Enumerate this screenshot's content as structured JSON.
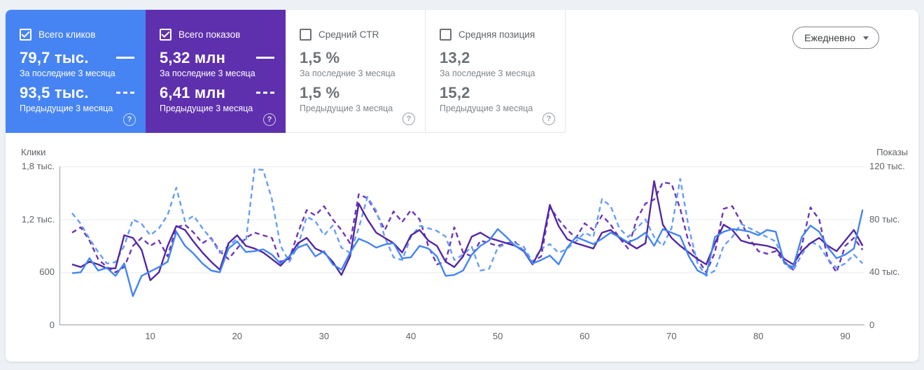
{
  "icons": {
    "help": "?"
  },
  "period_selector": {
    "label": "Ежедневно"
  },
  "cards": [
    {
      "label": "Всего кликов",
      "checked": true,
      "bg": "#4784f3",
      "current": {
        "value": "79,7 тыс.",
        "caption": "За последние 3 месяца"
      },
      "previous": {
        "value": "93,5 тыс.",
        "caption": "Предыдущие 3 месяца"
      }
    },
    {
      "label": "Всего показов",
      "checked": true,
      "bg": "#5e30ad",
      "current": {
        "value": "5,32 млн",
        "caption": "За последние 3 месяца"
      },
      "previous": {
        "value": "6,41 млн",
        "caption": "Предыдущие 3 месяца"
      }
    },
    {
      "label": "Средний CTR",
      "checked": false,
      "bg": "#ffffff",
      "current": {
        "value": "1,5 %",
        "caption": "За последние 3 месяца"
      },
      "previous": {
        "value": "1,5 %",
        "caption": "Предыдущие 3 месяца"
      }
    },
    {
      "label": "Средняя позиция",
      "checked": false,
      "bg": "#ffffff",
      "current": {
        "value": "13,2",
        "caption": "За последние 3 месяца"
      },
      "previous": {
        "value": "15,2",
        "caption": "Предыдущие 3 месяца"
      }
    }
  ],
  "chart_data": {
    "type": "line",
    "title": "",
    "xlabel": "",
    "x_label_ticks": [
      10,
      20,
      30,
      40,
      50,
      60,
      70,
      80,
      90
    ],
    "x_range": [
      1,
      92
    ],
    "grid": true,
    "left_axis": {
      "title": "Клики",
      "ticks": [
        "1,8 тыс.",
        "1,2 тыс.",
        "600",
        "0"
      ],
      "max": 1800
    },
    "right_axis": {
      "title": "Показы",
      "ticks": [
        "120 тыс.",
        "80 тыс.",
        "40 тыс.",
        "0"
      ],
      "max": 120000
    },
    "series": [
      {
        "name": "Показы — предыдущие 3 месяца",
        "axis": "right",
        "style": "dashed",
        "color": "#6d35ba",
        "values": [
          70000,
          74000,
          64000,
          50000,
          44000,
          40000,
          44000,
          60000,
          66000,
          60000,
          64000,
          52000,
          74000,
          76000,
          70000,
          62000,
          66000,
          56000,
          50000,
          58000,
          66000,
          70000,
          68000,
          66000,
          48000,
          50000,
          70000,
          87000,
          83000,
          90000,
          80000,
          72000,
          62000,
          99000,
          96000,
          85000,
          72000,
          86000,
          78000,
          87000,
          80000,
          60000,
          46000,
          48000,
          74000,
          55000,
          52000,
          64000,
          62000,
          60000,
          62000,
          63000,
          56000,
          48000,
          52000,
          89000,
          80000,
          72000,
          66000,
          77000,
          72000,
          83000,
          76000,
          66000,
          58000,
          80000,
          92000,
          95000,
          108000,
          107000,
          88000,
          62000,
          50000,
          40000,
          55000,
          88000,
          90000,
          78000,
          65000,
          56000,
          54000,
          56000,
          48000,
          42000,
          60000,
          89000,
          80000,
          50000,
          40000,
          60000,
          66000,
          57000
        ]
      },
      {
        "name": "Клики — предыдущие 3 месяца",
        "axis": "left",
        "style": "dashed",
        "color": "#669df6",
        "values": [
          1270,
          1150,
          980,
          830,
          700,
          715,
          900,
          1200,
          1150,
          1020,
          1100,
          1250,
          1560,
          1180,
          1240,
          1100,
          980,
          820,
          900,
          980,
          950,
          1770,
          1760,
          1430,
          900,
          720,
          900,
          1230,
          1180,
          1020,
          1130,
          880,
          820,
          1100,
          1455,
          1300,
          1000,
          770,
          740,
          1000,
          1125,
          1100,
          1070,
          1005,
          740,
          800,
          890,
          620,
          640,
          880,
          925,
          930,
          890,
          715,
          870,
          920,
          820,
          870,
          950,
          1050,
          1000,
          1430,
          1350,
          1100,
          1000,
          1100,
          1200,
          1000,
          900,
          1100,
          1660,
          1100,
          700,
          560,
          620,
          900,
          1000,
          1150,
          1100,
          1050,
          1000,
          950,
          700,
          620,
          800,
          950,
          900,
          750,
          650,
          700,
          800,
          700
        ]
      },
      {
        "name": "Показы — за последние 3 месяца",
        "axis": "right",
        "style": "solid",
        "color": "#5227a3",
        "values": [
          46000,
          44000,
          48000,
          46000,
          43000,
          43000,
          68000,
          66000,
          57000,
          34000,
          40000,
          60000,
          75000,
          72000,
          63000,
          55000,
          48000,
          42000,
          62000,
          68000,
          60000,
          58000,
          55000,
          50000,
          45000,
          52000,
          62000,
          66000,
          58000,
          55000,
          48000,
          38000,
          52000,
          92000,
          80000,
          70000,
          66000,
          62000,
          55000,
          68000,
          72000,
          64000,
          60000,
          48000,
          44000,
          52000,
          67000,
          70000,
          66000,
          64000,
          62000,
          60000,
          56000,
          46000,
          58000,
          91000,
          75000,
          65000,
          62000,
          60000,
          58000,
          70000,
          72000,
          66000,
          62000,
          58000,
          62000,
          109000,
          76000,
          66000,
          60000,
          55000,
          50000,
          46000,
          62000,
          76000,
          72000,
          64000,
          62000,
          61000,
          60000,
          58000,
          50000,
          46000,
          56000,
          62000,
          66000,
          60000,
          56000,
          64000,
          72000,
          60000
        ]
      },
      {
        "name": "Клики — за последние 3 месяца",
        "axis": "left",
        "style": "solid",
        "color": "#4285f4",
        "values": [
          590,
          600,
          760,
          620,
          650,
          560,
          700,
          330,
          560,
          610,
          660,
          720,
          1060,
          900,
          810,
          700,
          620,
          600,
          870,
          950,
          830,
          840,
          860,
          800,
          700,
          780,
          880,
          920,
          780,
          840,
          690,
          630,
          820,
          980,
          940,
          880,
          915,
          930,
          760,
          770,
          900,
          870,
          780,
          560,
          570,
          620,
          800,
          900,
          960,
          1090,
          1000,
          900,
          850,
          700,
          740,
          790,
          690,
          880,
          1000,
          960,
          920,
          980,
          1050,
          1000,
          940,
          980,
          1050,
          900,
          1090,
          1050,
          1010,
          780,
          620,
          570,
          1000,
          1060,
          1090,
          1080,
          1060,
          1020,
          1080,
          1060,
          700,
          660,
          1000,
          1130,
          1060,
          880,
          760,
          800,
          870,
          1310
        ]
      }
    ]
  }
}
